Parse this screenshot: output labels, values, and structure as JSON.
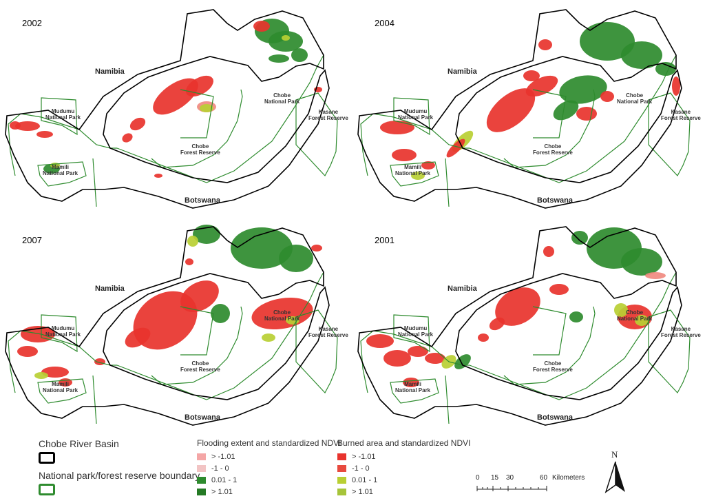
{
  "panels": [
    {
      "year": "2002"
    },
    {
      "year": "2004"
    },
    {
      "year": "2007"
    },
    {
      "year": "2001"
    }
  ],
  "map_labels": {
    "namibia": "Namibia",
    "botswana": "Botswana",
    "mudumu": "Mudumu\nNational Park",
    "mamili": "Mamili\nNational Park",
    "chobe_np": "Chobe\nNational Park",
    "chobe_fr": "Chobe\nForest Reserve",
    "kasane": "Kasane\nForest Reserve"
  },
  "legend": {
    "basin_label": "Chobe River Basin",
    "boundary_label": "National park/forest reserve boundary",
    "flood": {
      "title": "Flooding extent and standardized NDVI",
      "items": [
        {
          "label": "> -1.01",
          "color": "#f4a6a6"
        },
        {
          "label": "-1 - 0",
          "color": "#f2c4c4"
        },
        {
          "label": "0.01 - 1",
          "color": "#2e8b2e"
        },
        {
          "label": "> 1.01",
          "color": "#257a25"
        }
      ]
    },
    "burn": {
      "title": "Burned area and standardized NDVI",
      "items": [
        {
          "label": "> -1.01",
          "color": "#e8332d"
        },
        {
          "label": "-1 - 0",
          "color": "#e84a3e"
        },
        {
          "label": "0.01 - 1",
          "color": "#b9cf33"
        },
        {
          "label": "> 1.01",
          "color": "#a6c43a"
        }
      ]
    },
    "colors": {
      "basin": "#000000",
      "boundary": "#2e8b2e"
    }
  },
  "scale": {
    "ticks": [
      "0",
      "15",
      "30",
      "60"
    ],
    "unit": "Kilometers"
  },
  "north": {
    "label": "N"
  }
}
